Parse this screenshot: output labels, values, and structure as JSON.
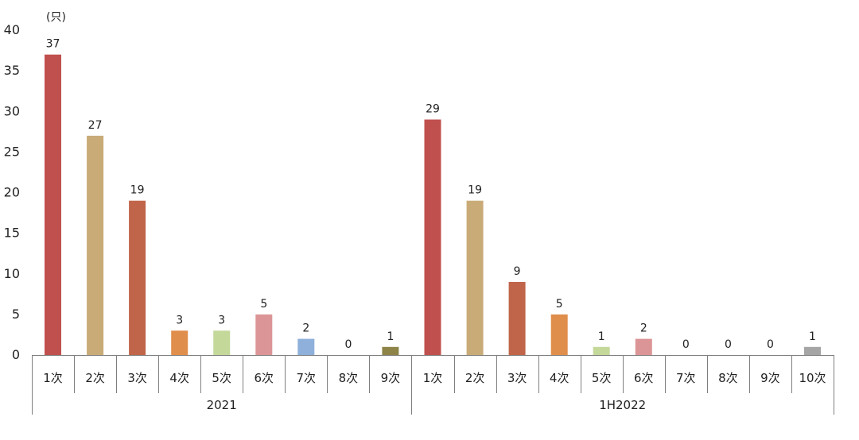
{
  "chart_data": {
    "type": "bar",
    "unit_label": "(只)",
    "ylim": [
      0,
      40
    ],
    "yticks": [
      "0",
      "5",
      "10",
      "15",
      "20",
      "25",
      "30",
      "35",
      "40"
    ],
    "grid": false,
    "legend": "none",
    "groups": [
      {
        "name": "2021",
        "categories": [
          "1次",
          "2次",
          "3次",
          "4次",
          "5次",
          "6次",
          "7次",
          "8次",
          "9次"
        ],
        "values": [
          37,
          27,
          19,
          3,
          3,
          5,
          2,
          0,
          1
        ]
      },
      {
        "name": "1H2022",
        "categories": [
          "1次",
          "2次",
          "3次",
          "4次",
          "5次",
          "6次",
          "7次",
          "8次",
          "9次",
          "10次"
        ],
        "values": [
          29,
          19,
          9,
          5,
          1,
          2,
          0,
          0,
          0,
          1
        ]
      }
    ],
    "colors": {
      "1次": "#c0504d",
      "2次": "#c9ab78",
      "3次": "#c0654a",
      "4次": "#e08e4c",
      "5次": "#c4d89a",
      "6次": "#dc9596",
      "7次": "#8eb0da",
      "8次": "#a5a5a5",
      "9次": "#8e8448",
      "10次": "#a5a5a5"
    }
  }
}
